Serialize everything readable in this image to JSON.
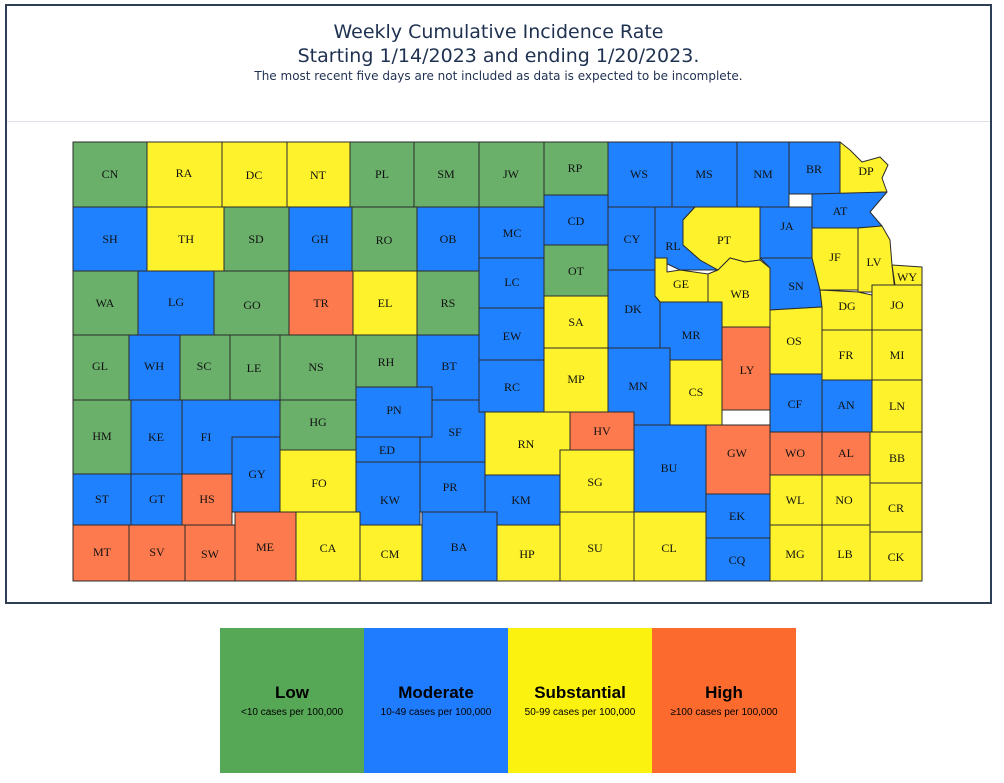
{
  "title_line1": "Weekly Cumulative Incidence Rate",
  "title_line2": "Starting 1/14/2023 and ending 1/20/2023.",
  "subtitle": "The most recent five days are not included as data is expected to be incomplete.",
  "colors": {
    "low": "#6aaf6a",
    "moderate": "#2081ff",
    "substantial": "#fdf22c",
    "high": "#fc7a4e",
    "border": "#2b2b2b"
  },
  "legend": [
    {
      "level": "low",
      "label": "Low",
      "range": "<10 cases per 100,000",
      "color": "#56a856"
    },
    {
      "level": "moderate",
      "label": "Moderate",
      "range": "10-49 cases per 100,000",
      "color": "#1f7cff"
    },
    {
      "level": "substantial",
      "label": "Substantial",
      "range": "50-99 cases per 100,000",
      "color": "#fcf210"
    },
    {
      "level": "high",
      "label": "High",
      "range": "≥100 cases per 100,000",
      "color": "#fc6a2e"
    }
  ],
  "counties": [
    {
      "abbr": "CN",
      "level": "low"
    },
    {
      "abbr": "RA",
      "level": "substantial"
    },
    {
      "abbr": "DC",
      "level": "substantial"
    },
    {
      "abbr": "NT",
      "level": "substantial"
    },
    {
      "abbr": "PL",
      "level": "low"
    },
    {
      "abbr": "SM",
      "level": "low"
    },
    {
      "abbr": "JW",
      "level": "low"
    },
    {
      "abbr": "RP",
      "level": "low"
    },
    {
      "abbr": "WS",
      "level": "moderate"
    },
    {
      "abbr": "MS",
      "level": "moderate"
    },
    {
      "abbr": "NM",
      "level": "moderate"
    },
    {
      "abbr": "BR",
      "level": "moderate"
    },
    {
      "abbr": "DP",
      "level": "substantial"
    },
    {
      "abbr": "SH",
      "level": "moderate"
    },
    {
      "abbr": "TH",
      "level": "substantial"
    },
    {
      "abbr": "SD",
      "level": "low"
    },
    {
      "abbr": "GH",
      "level": "moderate"
    },
    {
      "abbr": "RO",
      "level": "low"
    },
    {
      "abbr": "OB",
      "level": "moderate"
    },
    {
      "abbr": "MC",
      "level": "moderate"
    },
    {
      "abbr": "CD",
      "level": "moderate"
    },
    {
      "abbr": "CY",
      "level": "moderate"
    },
    {
      "abbr": "RL",
      "level": "moderate"
    },
    {
      "abbr": "PT",
      "level": "substantial"
    },
    {
      "abbr": "JA",
      "level": "moderate"
    },
    {
      "abbr": "AT",
      "level": "moderate"
    },
    {
      "abbr": "JF",
      "level": "substantial"
    },
    {
      "abbr": "LV",
      "level": "substantial"
    },
    {
      "abbr": "WY",
      "level": "substantial"
    },
    {
      "abbr": "WA",
      "level": "low"
    },
    {
      "abbr": "LG",
      "level": "moderate"
    },
    {
      "abbr": "GO",
      "level": "low"
    },
    {
      "abbr": "TR",
      "level": "high"
    },
    {
      "abbr": "EL",
      "level": "substantial"
    },
    {
      "abbr": "RS",
      "level": "low"
    },
    {
      "abbr": "LC",
      "level": "moderate"
    },
    {
      "abbr": "OT",
      "level": "low"
    },
    {
      "abbr": "GE",
      "level": "substantial"
    },
    {
      "abbr": "WB",
      "level": "substantial"
    },
    {
      "abbr": "SN",
      "level": "moderate"
    },
    {
      "abbr": "DG",
      "level": "substantial"
    },
    {
      "abbr": "JO",
      "level": "substantial"
    },
    {
      "abbr": "DK",
      "level": "moderate"
    },
    {
      "abbr": "SA",
      "level": "substantial"
    },
    {
      "abbr": "EW",
      "level": "moderate"
    },
    {
      "abbr": "MR",
      "level": "moderate"
    },
    {
      "abbr": "OS",
      "level": "substantial"
    },
    {
      "abbr": "LY",
      "level": "high"
    },
    {
      "abbr": "GL",
      "level": "low"
    },
    {
      "abbr": "WH",
      "level": "moderate"
    },
    {
      "abbr": "SC",
      "level": "low"
    },
    {
      "abbr": "LE",
      "level": "low"
    },
    {
      "abbr": "NS",
      "level": "low"
    },
    {
      "abbr": "RH",
      "level": "low"
    },
    {
      "abbr": "BT",
      "level": "moderate"
    },
    {
      "abbr": "RC",
      "level": "moderate"
    },
    {
      "abbr": "MP",
      "level": "substantial"
    },
    {
      "abbr": "MN",
      "level": "moderate"
    },
    {
      "abbr": "CS",
      "level": "substantial"
    },
    {
      "abbr": "FR",
      "level": "substantial"
    },
    {
      "abbr": "MI",
      "level": "substantial"
    },
    {
      "abbr": "CF",
      "level": "moderate"
    },
    {
      "abbr": "AN",
      "level": "moderate"
    },
    {
      "abbr": "LN",
      "level": "substantial"
    },
    {
      "abbr": "HM",
      "level": "low"
    },
    {
      "abbr": "KE",
      "level": "moderate"
    },
    {
      "abbr": "FI",
      "level": "moderate"
    },
    {
      "abbr": "HG",
      "level": "low"
    },
    {
      "abbr": "PN",
      "level": "moderate"
    },
    {
      "abbr": "SF",
      "level": "moderate"
    },
    {
      "abbr": "RN",
      "level": "substantial"
    },
    {
      "abbr": "HV",
      "level": "high"
    },
    {
      "abbr": "GW",
      "level": "high"
    },
    {
      "abbr": "WO",
      "level": "high"
    },
    {
      "abbr": "AL",
      "level": "high"
    },
    {
      "abbr": "BB",
      "level": "substantial"
    },
    {
      "abbr": "GY",
      "level": "moderate"
    },
    {
      "abbr": "ED",
      "level": "moderate"
    },
    {
      "abbr": "FO",
      "level": "substantial"
    },
    {
      "abbr": "BU",
      "level": "moderate"
    },
    {
      "abbr": "ST",
      "level": "moderate"
    },
    {
      "abbr": "GT",
      "level": "moderate"
    },
    {
      "abbr": "HS",
      "level": "high"
    },
    {
      "abbr": "KW",
      "level": "moderate"
    },
    {
      "abbr": "PR",
      "level": "moderate"
    },
    {
      "abbr": "KM",
      "level": "moderate"
    },
    {
      "abbr": "SG",
      "level": "substantial"
    },
    {
      "abbr": "WL",
      "level": "substantial"
    },
    {
      "abbr": "NO",
      "level": "substantial"
    },
    {
      "abbr": "CR",
      "level": "substantial"
    },
    {
      "abbr": "EK",
      "level": "moderate"
    },
    {
      "abbr": "MT",
      "level": "high"
    },
    {
      "abbr": "SV",
      "level": "high"
    },
    {
      "abbr": "SW",
      "level": "high"
    },
    {
      "abbr": "ME",
      "level": "high"
    },
    {
      "abbr": "CA",
      "level": "substantial"
    },
    {
      "abbr": "CM",
      "level": "substantial"
    },
    {
      "abbr": "BA",
      "level": "moderate"
    },
    {
      "abbr": "HP",
      "level": "substantial"
    },
    {
      "abbr": "SU",
      "level": "substantial"
    },
    {
      "abbr": "CL",
      "level": "substantial"
    },
    {
      "abbr": "CQ",
      "level": "moderate"
    },
    {
      "abbr": "MG",
      "level": "substantial"
    },
    {
      "abbr": "LB",
      "level": "substantial"
    },
    {
      "abbr": "CK",
      "level": "substantial"
    }
  ]
}
